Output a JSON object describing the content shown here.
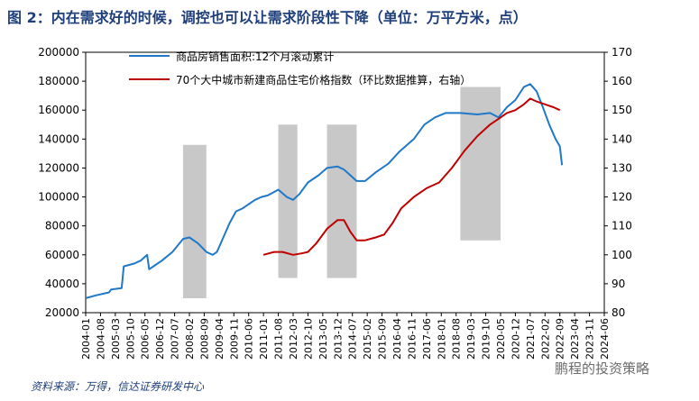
{
  "title": "图 2：内在需求好的时候，调控也可以让需求阶段性下降（单位：万平方米，点）",
  "source": "资料来源：万得，信达证券研发中心",
  "watermark": "鹏程的投资策略",
  "chart_data": {
    "type": "line",
    "legend": [
      "商品房销售面积:12个月滚动累计",
      "70个大中城市新建商品住宅价格指数（环比数据推算，右轴）"
    ],
    "colors": {
      "left": "#1f78c8",
      "right": "#c00000",
      "band": "#c8c8c8"
    },
    "x_labels": [
      "2004-01",
      "2004-08",
      "2005-03",
      "2005-10",
      "2006-05",
      "2006-12",
      "2007-07",
      "2008-02",
      "2008-09",
      "2009-04",
      "2009-11",
      "2010-06",
      "2011-01",
      "2011-08",
      "2012-03",
      "2012-10",
      "2013-05",
      "2013-12",
      "2014-07",
      "2015-02",
      "2015-09",
      "2016-04",
      "2016-11",
      "2017-06",
      "2018-01",
      "2018-08",
      "2019-03",
      "2019-10",
      "2020-05",
      "2020-12",
      "2021-07",
      "2022-02",
      "2022-09",
      "2023-04",
      "2023-11",
      "2024-06"
    ],
    "y_left": {
      "min": 20000,
      "max": 200000,
      "ticks": [
        20000,
        40000,
        60000,
        80000,
        100000,
        120000,
        140000,
        160000,
        180000,
        200000
      ]
    },
    "y_right": {
      "min": 80,
      "max": 170,
      "ticks": [
        80,
        90,
        100,
        110,
        120,
        130,
        140,
        150,
        160,
        170
      ]
    },
    "shaded_periods": [
      {
        "start": "2007-11",
        "end": "2008-10",
        "ymax": 138,
        "ymin": 85
      },
      {
        "start": "2011-08",
        "end": "2012-05",
        "ymax": 145,
        "ymin": 92
      },
      {
        "start": "2013-07",
        "end": "2014-09",
        "ymax": 145,
        "ymin": 92
      },
      {
        "start": "2018-10",
        "end": "2020-05",
        "ymax": 158,
        "ymin": 105
      }
    ],
    "series": [
      {
        "name": "商品房销售面积:12个月滚动累计",
        "axis": "left",
        "points": [
          [
            "2004-01",
            30000
          ],
          [
            "2004-06",
            32000
          ],
          [
            "2004-12",
            34000
          ],
          [
            "2005-01",
            36000
          ],
          [
            "2005-06",
            37000
          ],
          [
            "2005-07",
            52000
          ],
          [
            "2005-12",
            54000
          ],
          [
            "2006-03",
            56000
          ],
          [
            "2006-06",
            60000
          ],
          [
            "2006-07",
            50000
          ],
          [
            "2006-10",
            53000
          ],
          [
            "2007-01",
            56000
          ],
          [
            "2007-06",
            62000
          ],
          [
            "2007-11",
            71000
          ],
          [
            "2008-02",
            72000
          ],
          [
            "2008-06",
            68000
          ],
          [
            "2008-10",
            62000
          ],
          [
            "2009-01",
            60000
          ],
          [
            "2009-03",
            62000
          ],
          [
            "2009-06",
            72000
          ],
          [
            "2009-09",
            82000
          ],
          [
            "2009-12",
            90000
          ],
          [
            "2010-03",
            92000
          ],
          [
            "2010-06",
            95000
          ],
          [
            "2010-09",
            98000
          ],
          [
            "2010-12",
            100000
          ],
          [
            "2011-03",
            101000
          ],
          [
            "2011-08",
            105000
          ],
          [
            "2011-12",
            100000
          ],
          [
            "2012-03",
            98000
          ],
          [
            "2012-06",
            102000
          ],
          [
            "2012-10",
            110000
          ],
          [
            "2013-03",
            115000
          ],
          [
            "2013-07",
            120000
          ],
          [
            "2013-12",
            121000
          ],
          [
            "2014-03",
            119000
          ],
          [
            "2014-06",
            115000
          ],
          [
            "2014-09",
            111000
          ],
          [
            "2015-01",
            111000
          ],
          [
            "2015-06",
            117000
          ],
          [
            "2015-12",
            123000
          ],
          [
            "2016-05",
            131000
          ],
          [
            "2016-12",
            140000
          ],
          [
            "2017-05",
            150000
          ],
          [
            "2017-10",
            155000
          ],
          [
            "2018-03",
            158000
          ],
          [
            "2018-10",
            158000
          ],
          [
            "2019-06",
            157000
          ],
          [
            "2019-12",
            158000
          ],
          [
            "2020-04",
            155000
          ],
          [
            "2020-08",
            162000
          ],
          [
            "2020-12",
            167000
          ],
          [
            "2021-04",
            176000
          ],
          [
            "2021-07",
            178000
          ],
          [
            "2021-10",
            173000
          ],
          [
            "2022-01",
            162000
          ],
          [
            "2022-04",
            150000
          ],
          [
            "2022-07",
            140000
          ],
          [
            "2022-09",
            135000
          ],
          [
            "2022-10",
            122000
          ]
        ]
      },
      {
        "name": "70个大中城市新建商品住宅价格指数（环比数据推算，右轴）",
        "axis": "right",
        "points": [
          [
            "2011-01",
            100
          ],
          [
            "2011-06",
            101
          ],
          [
            "2011-10",
            101
          ],
          [
            "2012-03",
            100
          ],
          [
            "2012-07",
            100.5
          ],
          [
            "2012-10",
            101
          ],
          [
            "2013-02",
            104
          ],
          [
            "2013-07",
            109
          ],
          [
            "2013-12",
            112
          ],
          [
            "2014-03",
            112
          ],
          [
            "2014-06",
            108
          ],
          [
            "2014-09",
            105
          ],
          [
            "2015-01",
            105
          ],
          [
            "2015-06",
            106
          ],
          [
            "2015-10",
            107
          ],
          [
            "2016-02",
            111
          ],
          [
            "2016-06",
            116
          ],
          [
            "2016-12",
            120
          ],
          [
            "2017-06",
            123
          ],
          [
            "2017-12",
            125
          ],
          [
            "2018-06",
            130
          ],
          [
            "2018-12",
            136
          ],
          [
            "2019-06",
            141
          ],
          [
            "2019-12",
            145
          ],
          [
            "2020-04",
            147
          ],
          [
            "2020-08",
            149
          ],
          [
            "2020-12",
            150
          ],
          [
            "2021-04",
            152
          ],
          [
            "2021-07",
            154
          ],
          [
            "2021-10",
            153
          ],
          [
            "2022-02",
            152
          ],
          [
            "2022-06",
            151
          ],
          [
            "2022-09",
            150
          ]
        ]
      }
    ]
  }
}
